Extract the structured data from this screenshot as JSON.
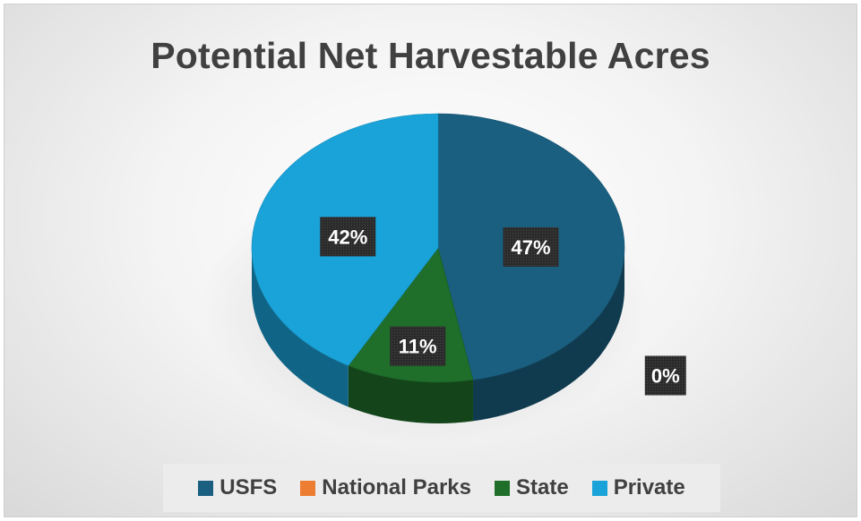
{
  "chart_data": {
    "type": "pie",
    "title": "Potential Net Harvestable Acres",
    "categories": [
      "USFS",
      "National Parks",
      "State",
      "Private"
    ],
    "values": [
      47,
      0,
      11,
      42
    ],
    "labels": [
      "47%",
      "0%",
      "11%",
      "42%"
    ],
    "colors": [
      "#1a5f80",
      "#ed7d31",
      "#1f6e2a",
      "#1aa3d9"
    ],
    "legend_position": "bottom",
    "style": "3d"
  }
}
